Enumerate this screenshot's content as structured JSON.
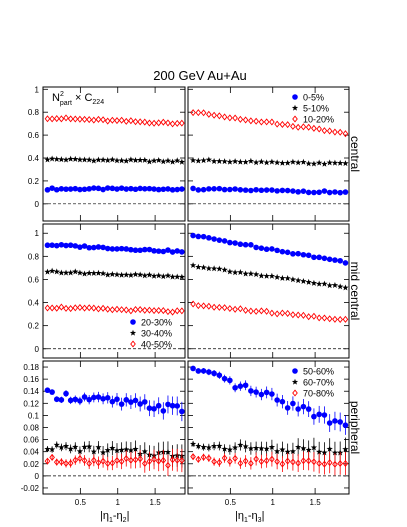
{
  "chart_data": {
    "type": "scatter",
    "title": "200 GeV Au+Au",
    "panel_label": {
      "main": "N",
      "sup": "2",
      "sub": "part",
      "rest": " × C",
      "rest_sub": "224"
    },
    "xlabels": {
      "left": {
        "a": "|η",
        "s1": "1",
        "b": "-η",
        "s2": "2",
        "c": "|"
      },
      "right": {
        "a": "|η",
        "s1": "1",
        "b": "-η",
        "s2": "3",
        "c": "|"
      }
    },
    "x_range": [
      0,
      1.9
    ],
    "x_ticks": [
      0.5,
      1,
      1.5
    ],
    "x_tick_labels": [
      "0.5",
      "1",
      "1.5"
    ],
    "x_start": 0.06,
    "x_step": 0.062,
    "n_points": 30,
    "rows": [
      {
        "name": "central",
        "ylim": [
          -0.15,
          1.02
        ],
        "yticks": [
          0,
          0.2,
          0.4,
          0.6,
          0.8,
          1
        ],
        "ytick_labels": [
          "0",
          "0.2",
          "0.4",
          "0.6",
          "0.8",
          "1"
        ],
        "legend": [
          "0-5%",
          "5-10%",
          "10-20%"
        ],
        "series_left": [
          {
            "marker": "circle",
            "color": "#0000ff",
            "y0": 0.13,
            "y1": 0.13
          },
          {
            "marker": "star",
            "color": "#000000",
            "y0": 0.39,
            "y1": 0.37
          },
          {
            "marker": "diamond",
            "color": "#ff0000",
            "y0": 0.75,
            "y1": 0.7
          }
        ],
        "series_right": [
          {
            "marker": "circle",
            "color": "#0000ff",
            "y0": 0.13,
            "y1": 0.1
          },
          {
            "marker": "star",
            "color": "#000000",
            "y0": 0.38,
            "y1": 0.35
          },
          {
            "marker": "diamond",
            "color": "#ff0000",
            "y0": 0.8,
            "y1": 0.62
          }
        ]
      },
      {
        "name": "mid central",
        "ylim": [
          -0.08,
          1.08
        ],
        "yticks": [
          0,
          0.2,
          0.4,
          0.6,
          0.8,
          1
        ],
        "ytick_labels": [
          "0",
          "0.2",
          "0.4",
          "0.6",
          "0.8",
          "1"
        ],
        "legend": [
          "20-30%",
          "30-40%",
          "40-50%"
        ],
        "series_left": [
          {
            "marker": "circle",
            "color": "#0000ff",
            "y0": 0.9,
            "y1": 0.84
          },
          {
            "marker": "star",
            "color": "#000000",
            "y0": 0.67,
            "y1": 0.62
          },
          {
            "marker": "diamond",
            "color": "#ff0000",
            "y0": 0.36,
            "y1": 0.32
          }
        ],
        "series_right": [
          {
            "marker": "circle",
            "color": "#0000ff",
            "y0": 0.98,
            "y1": 0.75
          },
          {
            "marker": "star",
            "color": "#000000",
            "y0": 0.72,
            "y1": 0.53
          },
          {
            "marker": "diamond",
            "color": "#ff0000",
            "y0": 0.38,
            "y1": 0.25
          }
        ]
      },
      {
        "name": "peripheral",
        "ylim": [
          -0.03,
          0.19
        ],
        "yticks": [
          -0.02,
          0,
          0.02,
          0.04,
          0.06,
          0.08,
          0.1,
          0.12,
          0.14,
          0.16,
          0.18
        ],
        "ytick_labels": [
          "-0.02",
          "0",
          "0.02",
          "0.04",
          "0.06",
          "0.08",
          "0.1",
          "0.12",
          "0.14",
          "0.16",
          "0.18"
        ],
        "legend": [
          "50-60%",
          "60-70%",
          "70-80%"
        ],
        "series_left": [
          {
            "marker": "circle",
            "color": "#0000ff",
            "y0": 0.135,
            "y1": 0.11
          },
          {
            "marker": "star",
            "color": "#000000",
            "y0": 0.048,
            "y1": 0.035
          },
          {
            "marker": "diamond",
            "color": "#ff0000",
            "y0": 0.026,
            "y1": 0.022
          }
        ],
        "series_right": [
          {
            "marker": "circle",
            "color": "#0000ff",
            "y0": 0.175,
            "y1": 0.085
          },
          {
            "marker": "star",
            "color": "#000000",
            "y0": 0.05,
            "y1": 0.04
          },
          {
            "marker": "diamond",
            "color": "#ff0000",
            "y0": 0.028,
            "y1": 0.018
          }
        ]
      }
    ]
  }
}
